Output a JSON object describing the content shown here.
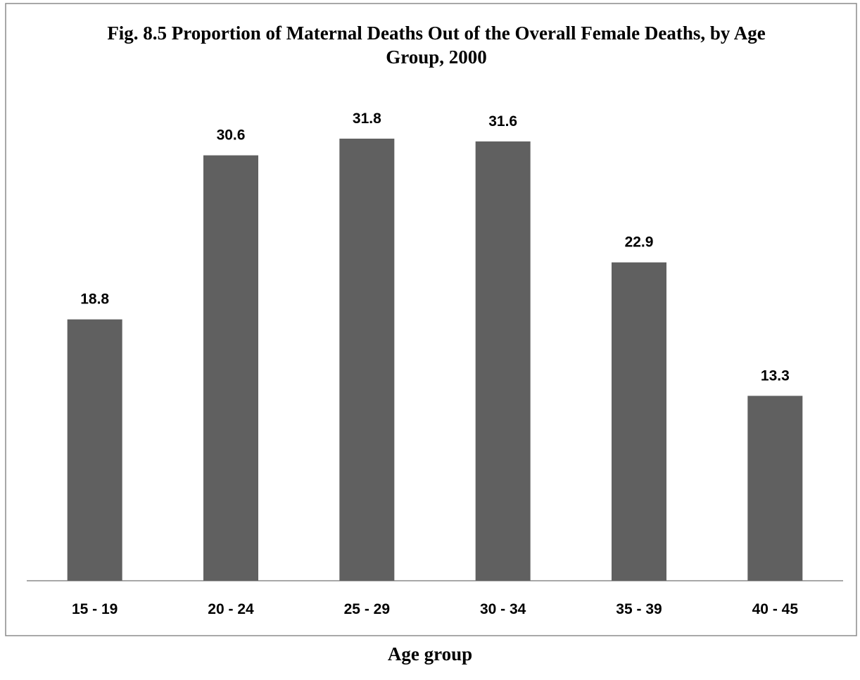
{
  "chart_data": {
    "type": "bar",
    "title": "Fig. 8.5 Proportion of Maternal Deaths Out of  the Overall Female Deaths, by Age Group, 2000",
    "x_label": "Age group",
    "categories": [
      "15 - 19",
      "20 - 24",
      "25 - 29",
      "30 - 34",
      "35 - 39",
      "40 - 45"
    ],
    "values": [
      18.8,
      30.6,
      31.8,
      31.6,
      22.9,
      13.3
    ],
    "color": "#606060"
  }
}
